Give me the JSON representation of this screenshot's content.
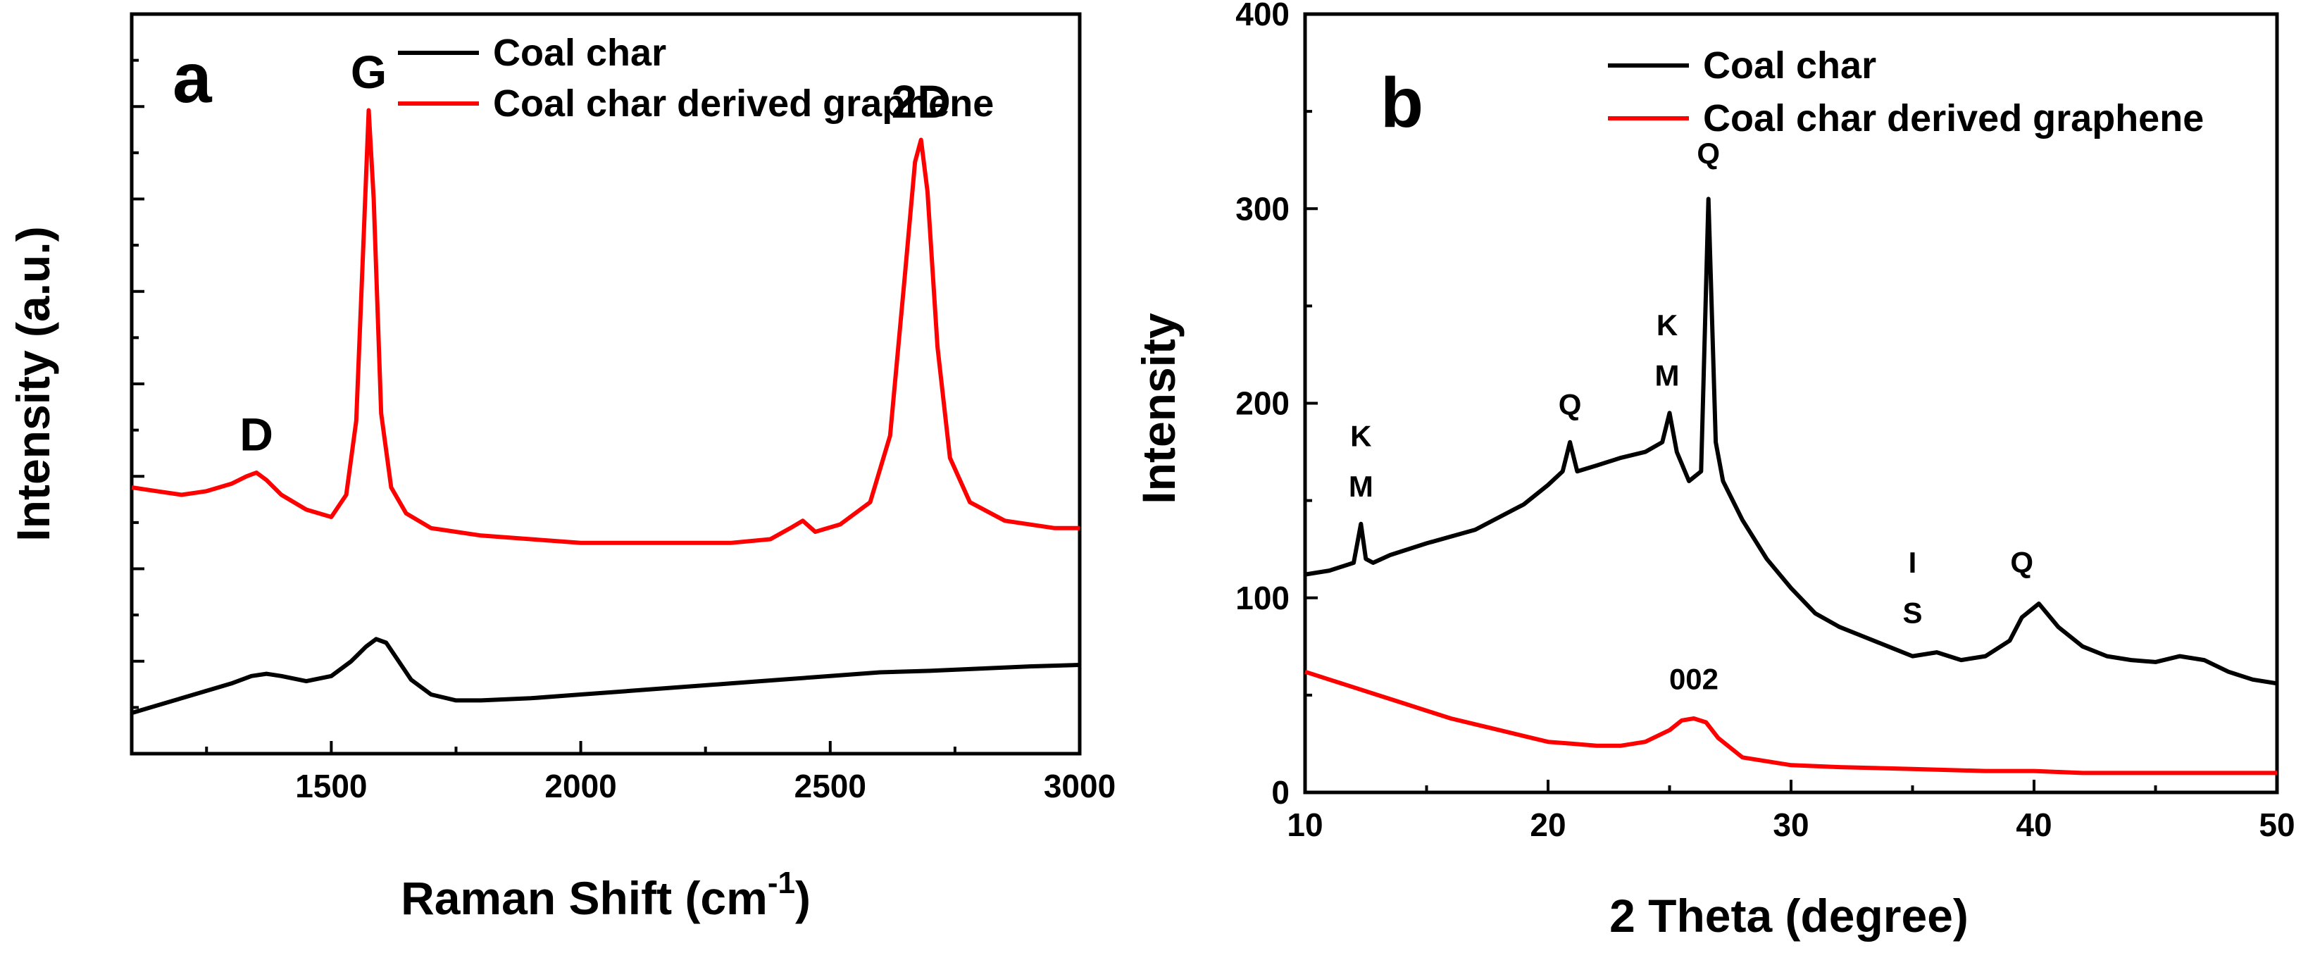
{
  "chart_data": [
    {
      "type": "line",
      "panel_label": "a",
      "title": "",
      "xlabel": "Raman Shift (cm",
      "xlabel_sup": "-1",
      "xlabel_close": ")",
      "ylabel": "Intensity (a.u.)",
      "xlim": [
        1100,
        3000
      ],
      "ylim": [
        0,
        10
      ],
      "xticks": [
        1500,
        2000,
        2500,
        3000
      ],
      "xtick_labels": [
        "1500",
        "2000",
        "2500",
        "3000"
      ],
      "yticks_shown": false,
      "legend": [
        "Coal char",
        "Coal char derived graphene"
      ],
      "legend_position": "top-right",
      "series": [
        {
          "name": "Coal char",
          "color": "#000000",
          "x": [
            1100,
            1150,
            1200,
            1250,
            1300,
            1340,
            1370,
            1400,
            1450,
            1500,
            1540,
            1570,
            1590,
            1610,
            1630,
            1660,
            1700,
            1750,
            1800,
            1900,
            2000,
            2100,
            2200,
            2300,
            2400,
            2500,
            2600,
            2700,
            2800,
            2900,
            3000
          ],
          "y": [
            0.55,
            0.65,
            0.75,
            0.85,
            0.95,
            1.05,
            1.08,
            1.05,
            0.98,
            1.05,
            1.25,
            1.45,
            1.55,
            1.5,
            1.3,
            1.0,
            0.8,
            0.72,
            0.72,
            0.75,
            0.8,
            0.85,
            0.9,
            0.95,
            1.0,
            1.05,
            1.1,
            1.12,
            1.15,
            1.18,
            1.2
          ]
        },
        {
          "name": "Coal char derived graphene",
          "color": "#ff0000",
          "x": [
            1100,
            1150,
            1200,
            1250,
            1300,
            1330,
            1350,
            1370,
            1400,
            1450,
            1500,
            1530,
            1550,
            1565,
            1575,
            1585,
            1600,
            1620,
            1650,
            1700,
            1800,
            1900,
            2000,
            2100,
            2200,
            2300,
            2380,
            2420,
            2445,
            2470,
            2520,
            2580,
            2620,
            2650,
            2670,
            2682,
            2695,
            2715,
            2740,
            2780,
            2850,
            2950,
            3000
          ],
          "y": [
            3.6,
            3.55,
            3.5,
            3.55,
            3.65,
            3.75,
            3.8,
            3.7,
            3.5,
            3.3,
            3.2,
            3.5,
            4.5,
            7.0,
            8.7,
            7.5,
            4.6,
            3.6,
            3.25,
            3.05,
            2.95,
            2.9,
            2.85,
            2.85,
            2.85,
            2.85,
            2.9,
            3.05,
            3.15,
            3.0,
            3.1,
            3.4,
            4.3,
            6.5,
            8.0,
            8.3,
            7.6,
            5.5,
            4.0,
            3.4,
            3.15,
            3.05,
            3.05
          ]
        }
      ],
      "annotations": [
        {
          "text": "D",
          "x": 1350,
          "y": 4.1
        },
        {
          "text": "G",
          "x": 1575,
          "y": 9.0
        },
        {
          "text": "2D",
          "x": 2682,
          "y": 8.6
        }
      ]
    },
    {
      "type": "line",
      "panel_label": "b",
      "title": "",
      "xlabel": "2 Theta (degree)",
      "ylabel": "Intensity",
      "xlim": [
        10,
        50
      ],
      "ylim": [
        0,
        400
      ],
      "xticks": [
        10,
        20,
        30,
        40,
        50
      ],
      "xtick_labels": [
        "10",
        "20",
        "30",
        "40",
        "50"
      ],
      "yticks": [
        0,
        100,
        200,
        300,
        400
      ],
      "ytick_labels": [
        "0",
        "100",
        "200",
        "300",
        "400"
      ],
      "legend": [
        "Coal char",
        "Coal char derived graphene"
      ],
      "legend_position": "top-right",
      "series": [
        {
          "name": "Coal char",
          "color": "#000000",
          "x": [
            10,
            11,
            12,
            12.3,
            12.5,
            12.8,
            13.5,
            15,
            17,
            19,
            20,
            20.6,
            20.9,
            21.2,
            22,
            23,
            24,
            24.7,
            25,
            25.3,
            25.8,
            26.3,
            26.6,
            26.9,
            27.2,
            28,
            29,
            30,
            31,
            32,
            33,
            34,
            35,
            36,
            37,
            38,
            39,
            39.5,
            40.2,
            41,
            42,
            43,
            44,
            45,
            46,
            47,
            48,
            49,
            50
          ],
          "y": [
            112,
            114,
            118,
            138,
            120,
            118,
            122,
            128,
            135,
            148,
            158,
            165,
            180,
            165,
            168,
            172,
            175,
            180,
            195,
            175,
            160,
            165,
            305,
            180,
            160,
            140,
            120,
            105,
            92,
            85,
            80,
            75,
            70,
            72,
            68,
            70,
            78,
            90,
            97,
            85,
            75,
            70,
            68,
            67,
            70,
            68,
            62,
            58,
            56
          ]
        },
        {
          "name": "Coal char derived graphene",
          "color": "#ff0000",
          "x": [
            10,
            11,
            12,
            13,
            14,
            15,
            16,
            17,
            18,
            19,
            20,
            21,
            22,
            23,
            24,
            25,
            25.5,
            26,
            26.5,
            27,
            28,
            29,
            30,
            32,
            35,
            38,
            40,
            42,
            45,
            48,
            50
          ],
          "y": [
            62,
            58,
            54,
            50,
            46,
            42,
            38,
            35,
            32,
            29,
            26,
            25,
            24,
            24,
            26,
            32,
            37,
            38,
            36,
            28,
            18,
            16,
            14,
            13,
            12,
            11,
            11,
            10,
            10,
            10,
            10
          ]
        }
      ],
      "annotations": [
        {
          "text": "K",
          "x": 12.3,
          "y": 178
        },
        {
          "text": "M",
          "x": 12.3,
          "y": 152
        },
        {
          "text": "Q",
          "x": 20.9,
          "y": 194
        },
        {
          "text": "K",
          "x": 24.9,
          "y": 235
        },
        {
          "text": "M",
          "x": 24.9,
          "y": 209
        },
        {
          "text": "Q",
          "x": 26.6,
          "y": 323
        },
        {
          "text": "I",
          "x": 35.0,
          "y": 113
        },
        {
          "text": "S",
          "x": 35.0,
          "y": 87
        },
        {
          "text": "Q",
          "x": 39.5,
          "y": 113
        },
        {
          "text": "002",
          "x": 26.0,
          "y": 53
        }
      ]
    }
  ]
}
